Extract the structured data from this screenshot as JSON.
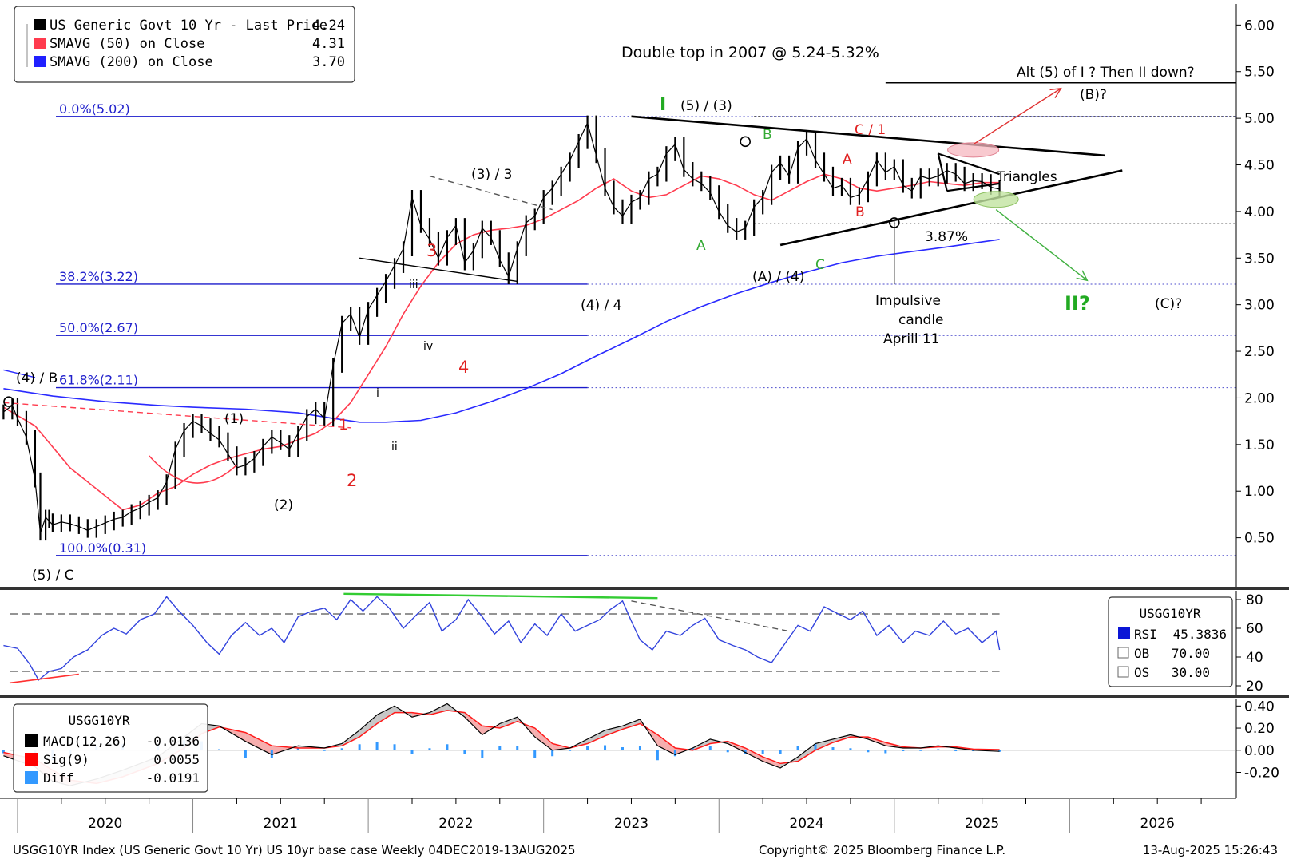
{
  "chart_data": [
    {
      "type": "line",
      "panel": "price",
      "legend": [
        {
          "label": "US Generic Govt 10 Yr - Last Price",
          "value": "4.24",
          "color": "#000000"
        },
        {
          "label": "SMAVG (50)  on Close",
          "value": "4.31",
          "color": "#ff3b4e"
        },
        {
          "label": "SMAVG (200)  on Close",
          "value": "3.70",
          "color": "#2020ff"
        }
      ],
      "title": "Double top in 2007 @ 5.24-5.32%",
      "y_ticks": [
        "6.00",
        "5.50",
        "5.00",
        "4.50",
        "4.00",
        "3.50",
        "3.00",
        "2.50",
        "2.00",
        "1.50",
        "1.00",
        "0.50"
      ],
      "ylim": [
        0.0,
        6.2
      ],
      "x_labels": [
        "2020",
        "2021",
        "2022",
        "2023",
        "2024",
        "2025",
        "2026"
      ],
      "xlim": [
        2019.9,
        2026.95
      ],
      "series": [
        {
          "x": [
            2019.92,
            2019.97,
            2020.0,
            2020.05,
            2020.1,
            2020.13,
            2020.16,
            2020.18,
            2020.2,
            2020.25,
            2020.3,
            2020.35,
            2020.4,
            2020.45,
            2020.5,
            2020.55,
            2020.6,
            2020.65,
            2020.7,
            2020.75,
            2020.8,
            2020.85,
            2020.9,
            2020.95,
            2021.0,
            2021.05,
            2021.1,
            2021.15,
            2021.2,
            2021.25,
            2021.3,
            2021.35,
            2021.4,
            2021.45,
            2021.5,
            2021.55,
            2021.6,
            2021.65,
            2021.7,
            2021.75,
            2021.8,
            2021.85,
            2021.9,
            2021.95,
            2022.0,
            2022.05,
            2022.1,
            2022.15,
            2022.2,
            2022.25,
            2022.3,
            2022.35,
            2022.4,
            2022.45,
            2022.5,
            2022.55,
            2022.6,
            2022.65,
            2022.7,
            2022.75,
            2022.8,
            2022.85,
            2022.9,
            2022.95,
            2023.0,
            2023.05,
            2023.1,
            2023.15,
            2023.2,
            2023.25,
            2023.3,
            2023.35,
            2023.4,
            2023.45,
            2023.5,
            2023.55,
            2023.6,
            2023.65,
            2023.7,
            2023.75,
            2023.8,
            2023.85,
            2023.9,
            2023.95,
            2024.0,
            2024.05,
            2024.1,
            2024.15,
            2024.2,
            2024.25,
            2024.3,
            2024.35,
            2024.4,
            2024.45,
            2024.5,
            2024.55,
            2024.6,
            2024.65,
            2024.7,
            2024.75,
            2024.8,
            2024.85,
            2024.9,
            2024.95,
            2025.0,
            2025.05,
            2025.1,
            2025.15,
            2025.2,
            2025.25,
            2025.3,
            2025.35,
            2025.4,
            2025.45,
            2025.5,
            2025.55,
            2025.6
          ],
          "name": "US Generic Govt 10 Yr - Last Price",
          "values": [
            1.85,
            1.92,
            1.78,
            1.58,
            1.12,
            0.55,
            0.72,
            0.68,
            0.64,
            0.67,
            0.65,
            0.62,
            0.58,
            0.62,
            0.66,
            0.7,
            0.72,
            0.78,
            0.82,
            0.88,
            0.93,
            1.1,
            1.45,
            1.65,
            1.75,
            1.7,
            1.62,
            1.55,
            1.4,
            1.25,
            1.28,
            1.35,
            1.48,
            1.58,
            1.52,
            1.45,
            1.62,
            1.8,
            1.88,
            1.78,
            2.35,
            2.8,
            2.9,
            2.65,
            2.95,
            3.1,
            3.25,
            3.42,
            3.6,
            4.15,
            3.85,
            3.7,
            3.5,
            3.72,
            3.85,
            3.45,
            3.58,
            3.82,
            3.72,
            3.48,
            3.3,
            3.6,
            3.88,
            3.95,
            4.15,
            4.25,
            4.4,
            4.55,
            4.75,
            4.95,
            4.6,
            4.25,
            4.05,
            3.95,
            4.1,
            4.15,
            4.35,
            4.4,
            4.62,
            4.72,
            4.45,
            4.35,
            4.3,
            4.2,
            4.0,
            3.85,
            3.78,
            3.82,
            4.05,
            4.15,
            4.42,
            4.52,
            4.38,
            4.68,
            4.78,
            4.55,
            4.4,
            4.25,
            4.28,
            4.15,
            4.18,
            4.35,
            4.55,
            4.42,
            4.48,
            4.28,
            4.22,
            4.38,
            4.35,
            4.38,
            4.44,
            4.4,
            4.3,
            4.33,
            4.32,
            4.26,
            4.24
          ]
        },
        {
          "x": [
            2019.92,
            2020.1,
            2020.3,
            2020.5,
            2020.6,
            2020.7,
            2020.8,
            2020.9,
            2021.0,
            2021.1,
            2021.2,
            2021.3,
            2021.4,
            2021.5,
            2021.6,
            2021.7,
            2021.8,
            2021.9,
            2022.0,
            2022.1,
            2022.2,
            2022.3,
            2022.4,
            2022.5,
            2022.6,
            2022.7,
            2022.8,
            2022.9,
            2023.0,
            2023.1,
            2023.2,
            2023.3,
            2023.4,
            2023.5,
            2023.6,
            2023.7,
            2023.8,
            2023.9,
            2024.0,
            2024.1,
            2024.2,
            2024.3,
            2024.4,
            2024.5,
            2024.6,
            2024.7,
            2024.8,
            2024.9,
            2025.0,
            2025.1,
            2025.2,
            2025.3,
            2025.4,
            2025.5,
            2025.6
          ],
          "name": "SMAVG (50)  on Close",
          "values": [
            1.9,
            1.7,
            1.25,
            0.95,
            0.8,
            0.85,
            0.98,
            1.05,
            1.18,
            1.28,
            1.35,
            1.4,
            1.45,
            1.48,
            1.55,
            1.62,
            1.75,
            1.95,
            2.25,
            2.55,
            2.9,
            3.2,
            3.45,
            3.65,
            3.75,
            3.8,
            3.82,
            3.85,
            3.92,
            4.02,
            4.12,
            4.25,
            4.35,
            4.22,
            4.15,
            4.18,
            4.28,
            4.38,
            4.35,
            4.28,
            4.18,
            4.12,
            4.22,
            4.32,
            4.4,
            4.35,
            4.25,
            4.22,
            4.25,
            4.28,
            4.32,
            4.3,
            4.28,
            4.31,
            4.31
          ]
        },
        {
          "x": [
            2019.92,
            2020.2,
            2020.5,
            2020.8,
            2021.0,
            2021.3,
            2021.6,
            2021.8,
            2021.95,
            2022.1,
            2022.3,
            2022.5,
            2022.7,
            2022.9,
            2023.1,
            2023.3,
            2023.5,
            2023.7,
            2023.9,
            2024.1,
            2024.3,
            2024.5,
            2024.7,
            2024.9,
            2025.1,
            2025.3,
            2025.45,
            2025.6
          ],
          "name": "SMAVG (200)  on Close",
          "values": [
            2.1,
            2.02,
            1.96,
            1.92,
            1.9,
            1.88,
            1.84,
            1.78,
            1.74,
            1.74,
            1.76,
            1.84,
            1.96,
            2.1,
            2.26,
            2.45,
            2.63,
            2.82,
            2.98,
            3.12,
            3.24,
            3.35,
            3.45,
            3.52,
            3.57,
            3.62,
            3.66,
            3.7
          ]
        }
      ],
      "fib_levels": [
        {
          "label": "0.0%(5.02)",
          "value": 5.02
        },
        {
          "label": "38.2%(3.22)",
          "value": 3.22
        },
        {
          "label": "50.0%(2.67)",
          "value": 2.67
        },
        {
          "label": "61.8%(2.11)",
          "value": 2.11
        },
        {
          "label": "100.0%(0.31)",
          "value": 0.31
        }
      ],
      "annotations": [
        "Alt (5) of I ? Then II down?",
        "(B)?",
        "I",
        "(5) / (3)",
        "B",
        "C / 1",
        "A",
        "B",
        "Triangles",
        "3.87%",
        "(3) / 3",
        "A",
        "C",
        "(A) / (4)",
        "Impulsive",
        "candle",
        "Aprill 11",
        "II?",
        "(C)?",
        "3",
        "iii",
        "(4) / 4",
        "iv",
        "4",
        "(4) / B",
        "(1)",
        "1",
        "i",
        "ii",
        "2",
        "(2)",
        "(5) / C"
      ]
    },
    {
      "type": "line",
      "panel": "rsi",
      "legend_title": "USGG10YR",
      "legend": [
        {
          "label": "RSI",
          "value": "45.3836",
          "color": "#0b16d6"
        },
        {
          "label": "OB",
          "value": "70.00"
        },
        {
          "label": "OS",
          "value": "30.00"
        }
      ],
      "y_ticks": [
        "80",
        "60",
        "40",
        "20"
      ],
      "ylim": [
        15,
        85
      ],
      "series": [
        {
          "x": [
            2019.92,
            2020.0,
            2020.07,
            2020.12,
            2020.18,
            2020.25,
            2020.32,
            2020.4,
            2020.48,
            2020.55,
            2020.62,
            2020.7,
            2020.78,
            2020.85,
            2020.92,
            2021.0,
            2021.08,
            2021.15,
            2021.22,
            2021.3,
            2021.38,
            2021.45,
            2021.52,
            2021.6,
            2021.68,
            2021.75,
            2021.82,
            2021.9,
            2021.97,
            2022.05,
            2022.12,
            2022.2,
            2022.28,
            2022.35,
            2022.42,
            2022.5,
            2022.57,
            2022.65,
            2022.72,
            2022.8,
            2022.87,
            2022.95,
            2023.02,
            2023.1,
            2023.18,
            2023.25,
            2023.32,
            2023.38,
            2023.45,
            2023.5,
            2023.55,
            2023.62,
            2023.7,
            2023.78,
            2023.85,
            2023.92,
            2024.0,
            2024.08,
            2024.15,
            2024.22,
            2024.3,
            2024.38,
            2024.45,
            2024.52,
            2024.6,
            2024.68,
            2024.75,
            2024.82,
            2024.9,
            2024.97,
            2025.05,
            2025.12,
            2025.2,
            2025.28,
            2025.35,
            2025.42,
            2025.5,
            2025.58,
            2025.6
          ],
          "name": "RSI",
          "values": [
            48,
            46,
            35,
            24,
            30,
            32,
            40,
            45,
            55,
            60,
            56,
            66,
            70,
            82,
            72,
            62,
            50,
            42,
            55,
            64,
            55,
            60,
            50,
            68,
            72,
            74,
            66,
            80,
            72,
            82,
            74,
            60,
            70,
            78,
            58,
            66,
            80,
            68,
            56,
            65,
            50,
            63,
            55,
            70,
            58,
            62,
            66,
            73,
            79,
            65,
            52,
            45,
            58,
            55,
            62,
            67,
            52,
            48,
            45,
            40,
            36,
            50,
            62,
            58,
            75,
            70,
            66,
            72,
            55,
            62,
            50,
            58,
            55,
            65,
            56,
            60,
            50,
            58,
            45
          ]
        }
      ],
      "levels": [
        70,
        30
      ]
    },
    {
      "type": "line",
      "panel": "macd",
      "legend_title": "USGG10YR",
      "legend": [
        {
          "label": "MACD(12,26)",
          "value": "-0.0136",
          "color": "#000000"
        },
        {
          "label": "Sig(9)",
          "value": "0.0055",
          "color": "#ff0000"
        },
        {
          "label": "Diff",
          "value": "-0.0191",
          "color": "#3399ff"
        }
      ],
      "y_ticks": [
        "0.40",
        "0.20",
        "0.00",
        "-0.20"
      ],
      "ylim": [
        -0.42,
        0.46
      ],
      "series": [
        {
          "x": [
            2019.92,
            2020.1,
            2020.2,
            2020.3,
            2020.45,
            2020.6,
            2020.8,
            2020.95,
            2021.05,
            2021.15,
            2021.3,
            2021.45,
            2021.6,
            2021.75,
            2021.85,
            2021.95,
            2022.05,
            2022.15,
            2022.25,
            2022.35,
            2022.45,
            2022.55,
            2022.65,
            2022.75,
            2022.85,
            2022.95,
            2023.05,
            2023.15,
            2023.25,
            2023.35,
            2023.45,
            2023.55,
            2023.65,
            2023.75,
            2023.85,
            2023.95,
            2024.05,
            2024.15,
            2024.25,
            2024.35,
            2024.45,
            2024.55,
            2024.65,
            2024.75,
            2024.85,
            2024.95,
            2025.05,
            2025.15,
            2025.25,
            2025.35,
            2025.45,
            2025.6
          ],
          "name": "MACD(12,26)",
          "values": [
            -0.05,
            -0.15,
            -0.28,
            -0.32,
            -0.26,
            -0.18,
            -0.06,
            0.12,
            0.24,
            0.22,
            0.08,
            -0.04,
            0.04,
            0.02,
            0.06,
            0.18,
            0.32,
            0.4,
            0.3,
            0.34,
            0.42,
            0.3,
            0.14,
            0.24,
            0.3,
            0.12,
            0.0,
            0.02,
            0.1,
            0.18,
            0.22,
            0.28,
            0.04,
            -0.04,
            0.02,
            0.1,
            0.06,
            -0.02,
            -0.1,
            -0.16,
            -0.06,
            0.06,
            0.1,
            0.14,
            0.1,
            0.04,
            0.02,
            0.02,
            0.04,
            0.02,
            0.0,
            -0.01
          ]
        },
        {
          "x": [
            2019.92,
            2020.1,
            2020.2,
            2020.3,
            2020.45,
            2020.6,
            2020.8,
            2020.95,
            2021.05,
            2021.15,
            2021.3,
            2021.45,
            2021.6,
            2021.75,
            2021.85,
            2021.95,
            2022.05,
            2022.15,
            2022.25,
            2022.35,
            2022.45,
            2022.55,
            2022.65,
            2022.75,
            2022.85,
            2022.95,
            2023.05,
            2023.15,
            2023.25,
            2023.35,
            2023.45,
            2023.55,
            2023.65,
            2023.75,
            2023.85,
            2023.95,
            2024.05,
            2024.15,
            2024.25,
            2024.35,
            2024.45,
            2024.55,
            2024.65,
            2024.75,
            2024.85,
            2024.95,
            2025.05,
            2025.15,
            2025.25,
            2025.35,
            2025.45,
            2025.6
          ],
          "name": "Sig(9)",
          "values": [
            -0.02,
            -0.08,
            -0.18,
            -0.27,
            -0.3,
            -0.24,
            -0.12,
            0.02,
            0.15,
            0.21,
            0.16,
            0.04,
            0.02,
            0.02,
            0.04,
            0.12,
            0.24,
            0.34,
            0.34,
            0.32,
            0.36,
            0.34,
            0.22,
            0.2,
            0.26,
            0.2,
            0.06,
            0.02,
            0.06,
            0.13,
            0.19,
            0.24,
            0.14,
            0.02,
            0.0,
            0.06,
            0.08,
            0.02,
            -0.06,
            -0.12,
            -0.1,
            0.0,
            0.07,
            0.12,
            0.12,
            0.07,
            0.03,
            0.02,
            0.03,
            0.03,
            0.01,
            0.0055
          ]
        }
      ]
    }
  ],
  "x_axis": {
    "labels": [
      "2020",
      "2021",
      "2022",
      "2023",
      "2024",
      "2025",
      "2026"
    ]
  },
  "footer": {
    "left": "USGG10YR Index (US Generic Govt 10 Yr) US 10yr base case  Weekly 04DEC2019-13AUG2025",
    "center": "Copyright© 2025 Bloomberg Finance L.P.",
    "right": "13-Aug-2025 15:26:43"
  }
}
